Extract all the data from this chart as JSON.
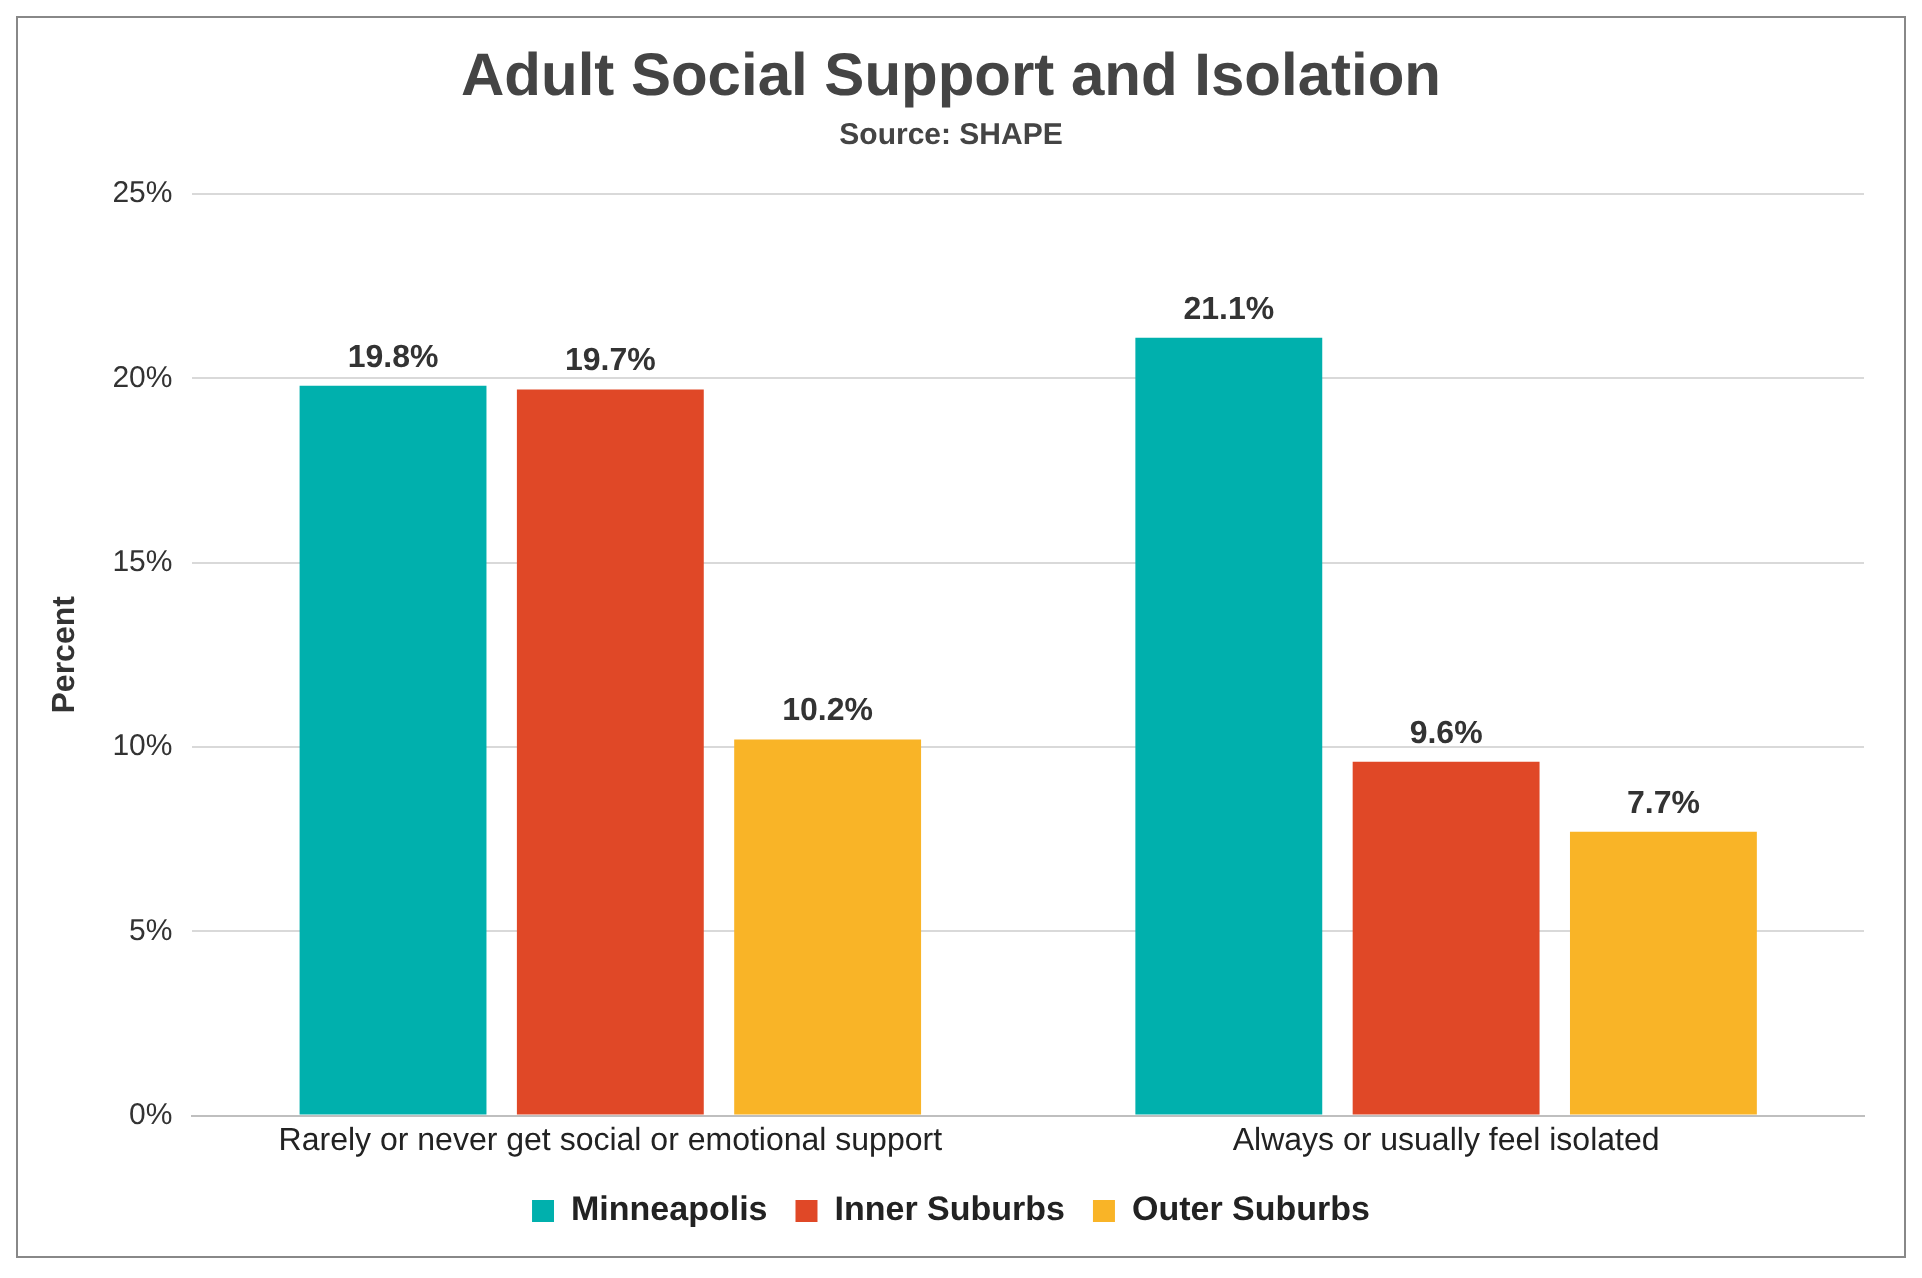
{
  "chart_data": {
    "type": "bar",
    "title": "Adult Social Support and Isolation",
    "subtitle": "Source: SHAPE",
    "ylabel": "Percent",
    "categories": [
      "Rarely or never get social or emotional support",
      "Always or usually feel isolated"
    ],
    "series": [
      {
        "name": "Minneapolis",
        "color": "#00b0ad",
        "values": [
          19.8,
          21.1
        ],
        "value_labels": [
          "19.8%",
          "21.1%"
        ]
      },
      {
        "name": "Inner Suburbs",
        "color": "#e04827",
        "values": [
          19.7,
          9.6
        ],
        "value_labels": [
          "19.7%",
          "9.6%"
        ]
      },
      {
        "name": "Outer Suburbs",
        "color": "#f9b427",
        "values": [
          10.2,
          7.7
        ],
        "value_labels": [
          "10.2%",
          "7.7%"
        ]
      }
    ],
    "ylim": [
      0,
      25
    ],
    "yticks": [
      {
        "value": 0,
        "label": "0%"
      },
      {
        "value": 5,
        "label": "5%"
      },
      {
        "value": 10,
        "label": "10%"
      },
      {
        "value": 15,
        "label": "15%"
      },
      {
        "value": 20,
        "label": "20%"
      },
      {
        "value": 25,
        "label": "25%"
      }
    ],
    "grid": "y",
    "legend": "bottom"
  }
}
